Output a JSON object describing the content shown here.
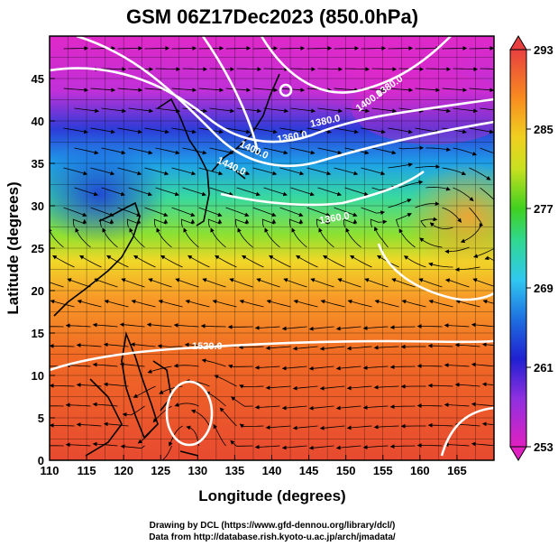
{
  "title": "GSM 06Z17Dec2023 (850.0hPa)",
  "x_axis": {
    "label": "Longitude (degrees)",
    "ticks": [
      "110",
      "115",
      "120",
      "125",
      "130",
      "135",
      "140",
      "145",
      "150",
      "155",
      "160",
      "165"
    ]
  },
  "y_axis": {
    "label": "Latitude  (degrees)",
    "ticks": [
      "0",
      "5",
      "10",
      "15",
      "20",
      "25",
      "30",
      "35",
      "40",
      "45"
    ]
  },
  "colorbar": {
    "ticks": [
      "253",
      "261",
      "269",
      "277",
      "285",
      "293"
    ],
    "colors": [
      "#e020c0",
      "#c030e0",
      "#2020d0",
      "#1e6ee0",
      "#30c8f0",
      "#30d890",
      "#40d020",
      "#a8e020",
      "#f0e020",
      "#f8a020",
      "#f06a20",
      "#e84040"
    ]
  },
  "contour_labels": [
    "1360.0",
    "1380.0",
    "1400.0",
    "1440.0",
    "1400.0",
    "1380.0",
    "1360.0",
    "1520.0"
  ],
  "credits": {
    "line1": "Drawing by DCL (https://www.gfd-dennou.org/library/dcl/)",
    "line2": "Data from http://database.rish.kyoto-u.ac.jp/arch/jmadata/"
  }
}
